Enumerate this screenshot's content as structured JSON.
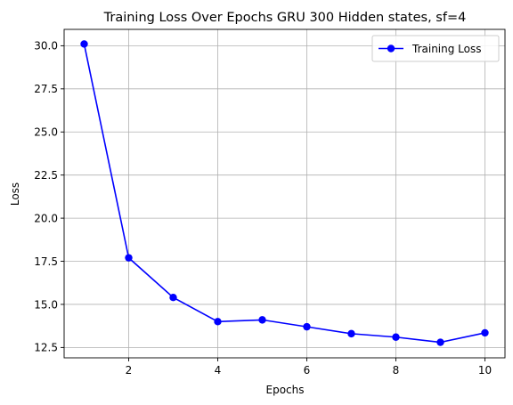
{
  "chart_data": {
    "type": "line",
    "title": "Training Loss Over Epochs GRU 300 Hidden states, sf=4",
    "xlabel": "Epochs",
    "ylabel": "Loss",
    "xlim": [
      0.55,
      10.45
    ],
    "ylim": [
      11.9,
      30.95
    ],
    "x_ticks": [
      2,
      4,
      6,
      8,
      10
    ],
    "x_tick_labels": [
      "2",
      "4",
      "6",
      "8",
      "10"
    ],
    "y_ticks": [
      12.5,
      15.0,
      17.5,
      20.0,
      22.5,
      25.0,
      27.5,
      30.0
    ],
    "y_tick_labels": [
      "12.5",
      "15.0",
      "17.5",
      "20.0",
      "22.5",
      "25.0",
      "27.5",
      "30.0"
    ],
    "grid": true,
    "legend_position": "top-right",
    "series": [
      {
        "name": "Training Loss",
        "color": "#0000ff",
        "marker": "circle",
        "x": [
          1,
          2,
          3,
          4,
          5,
          6,
          7,
          8,
          9,
          10
        ],
        "y": [
          30.1,
          17.7,
          15.4,
          14.0,
          14.1,
          13.7,
          13.3,
          13.1,
          12.8,
          13.35
        ]
      }
    ]
  }
}
